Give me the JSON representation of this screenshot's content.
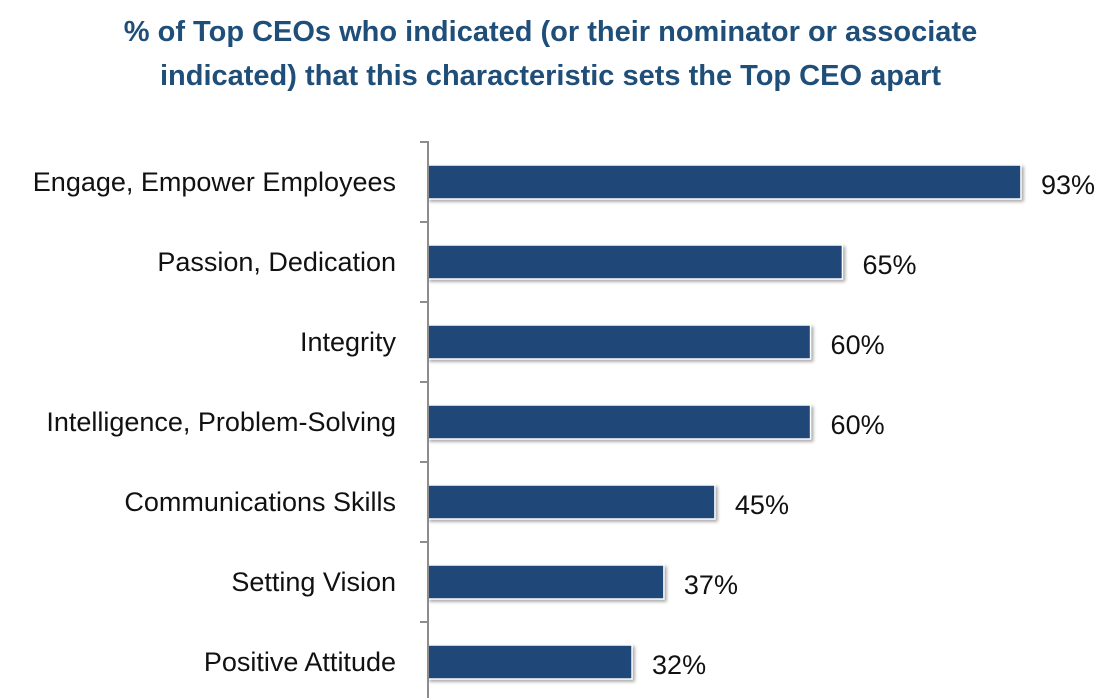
{
  "chart_data": {
    "type": "bar",
    "orientation": "horizontal",
    "title_lines": [
      "% of Top CEOs who indicated (or their nominator or associate",
      "indicated) that this characteristic sets the Top CEO apart"
    ],
    "categories": [
      "Engage, Empower Employees",
      "Passion, Dedication",
      "Integrity",
      "Intelligence, Problem-Solving",
      "Communications Skills",
      "Setting Vision",
      "Positive Attitude"
    ],
    "values": [
      93,
      65,
      60,
      60,
      45,
      37,
      32
    ],
    "value_labels": [
      "93%",
      "65%",
      "60%",
      "60%",
      "45%",
      "37%",
      "32%"
    ],
    "xlim": [
      0,
      100
    ],
    "grid": false,
    "legend": "none",
    "colors": {
      "bar": "#1f4879",
      "bar_outline": "#ffffff",
      "title": "#1f4e79",
      "axis": "#8c8c8c"
    }
  }
}
